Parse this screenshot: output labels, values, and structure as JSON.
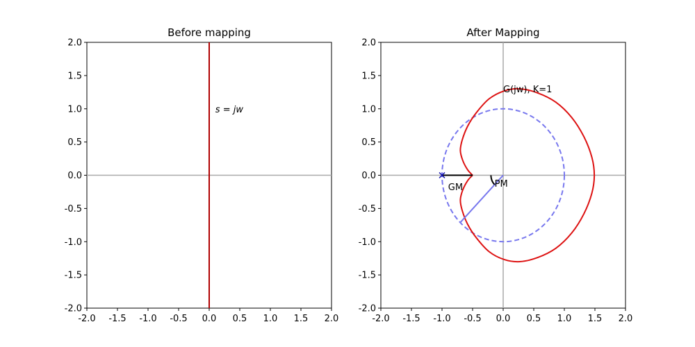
{
  "chart_data": [
    {
      "type": "line",
      "title": "Before mapping",
      "xlabel": "",
      "ylabel": "",
      "xlim": [
        -2.0,
        2.0
      ],
      "ylim": [
        -2.0,
        2.0
      ],
      "xticks": [
        "-2.0",
        "-1.5",
        "-1.0",
        "-0.5",
        "0.0",
        "0.5",
        "1.0",
        "1.5",
        "2.0"
      ],
      "yticks": [
        "-2.0",
        "-1.5",
        "-1.0",
        "-0.5",
        "0.0",
        "0.5",
        "1.0",
        "1.5",
        "2.0"
      ],
      "grid": false,
      "reference_lines": {
        "x": 0,
        "y": 0,
        "color": "#aaaaaa"
      },
      "series": [
        {
          "x": [
            0,
            0
          ],
          "y": [
            -2,
            2
          ],
          "color": "#b00000"
        }
      ],
      "annotations": [
        {
          "text": "s = jw",
          "x": 0.1,
          "y": 1.0
        }
      ]
    },
    {
      "type": "line",
      "title": "After Mapping",
      "xlabel": "",
      "ylabel": "",
      "xlim": [
        -2.0,
        2.0
      ],
      "ylim": [
        -2.0,
        2.0
      ],
      "xticks": [
        "-2.0",
        "-1.5",
        "-1.0",
        "-0.5",
        "0.0",
        "0.5",
        "1.0",
        "1.5",
        "2.0"
      ],
      "yticks": [
        "-2.0",
        "-1.5",
        "-1.0",
        "-0.5",
        "0.0",
        "0.5",
        "1.0",
        "1.5",
        "2.0"
      ],
      "grid": false,
      "reference_lines": {
        "x": 0,
        "y": 0,
        "color": "#aaaaaa"
      },
      "nyquist_curve": {
        "color": "#dd1111",
        "points": [
          [
            -0.5,
            0.0
          ],
          [
            -0.58,
            0.08
          ],
          [
            -0.66,
            0.22
          ],
          [
            -0.7,
            0.37
          ],
          [
            -0.67,
            0.53
          ],
          [
            -0.58,
            0.74
          ],
          [
            -0.44,
            0.94
          ],
          [
            -0.23,
            1.15
          ],
          [
            0.02,
            1.27
          ],
          [
            0.27,
            1.3
          ],
          [
            0.56,
            1.24
          ],
          [
            0.86,
            1.1
          ],
          [
            1.12,
            0.87
          ],
          [
            1.32,
            0.58
          ],
          [
            1.45,
            0.27
          ],
          [
            1.49,
            0.0
          ],
          [
            1.45,
            -0.27
          ],
          [
            1.32,
            -0.58
          ],
          [
            1.12,
            -0.87
          ],
          [
            0.86,
            -1.1
          ],
          [
            0.56,
            -1.24
          ],
          [
            0.27,
            -1.3
          ],
          [
            0.02,
            -1.27
          ],
          [
            -0.23,
            -1.15
          ],
          [
            -0.44,
            -0.94
          ],
          [
            -0.58,
            -0.74
          ],
          [
            -0.67,
            -0.53
          ],
          [
            -0.7,
            -0.37
          ],
          [
            -0.66,
            -0.22
          ],
          [
            -0.58,
            -0.08
          ],
          [
            -0.5,
            0.0
          ]
        ]
      },
      "unit_circle": {
        "center": [
          0,
          0
        ],
        "radius": 1.0,
        "color": "#7777ee",
        "dashed": true
      },
      "critical_point": {
        "x": -1.0,
        "y": 0.0,
        "marker": "x",
        "color": "#1111aa"
      },
      "gm_segment": {
        "x": [
          -1.0,
          -0.5
        ],
        "y": [
          0.0,
          0.0
        ],
        "color": "#000000"
      },
      "pm_line": {
        "x": [
          0.0,
          -0.7
        ],
        "y": [
          0.0,
          -0.71
        ],
        "color": "#7777ee"
      },
      "pm_arc": {
        "radius": 0.2,
        "start_deg": 180,
        "end_deg": 225,
        "color": "#000000"
      },
      "annotations": [
        {
          "text": "G(jw), K=1",
          "x": 0.0,
          "y": 1.3
        },
        {
          "text": "GM",
          "x": -0.9,
          "y": -0.17
        },
        {
          "text": "PM",
          "x": -0.14,
          "y": -0.12
        }
      ]
    }
  ]
}
